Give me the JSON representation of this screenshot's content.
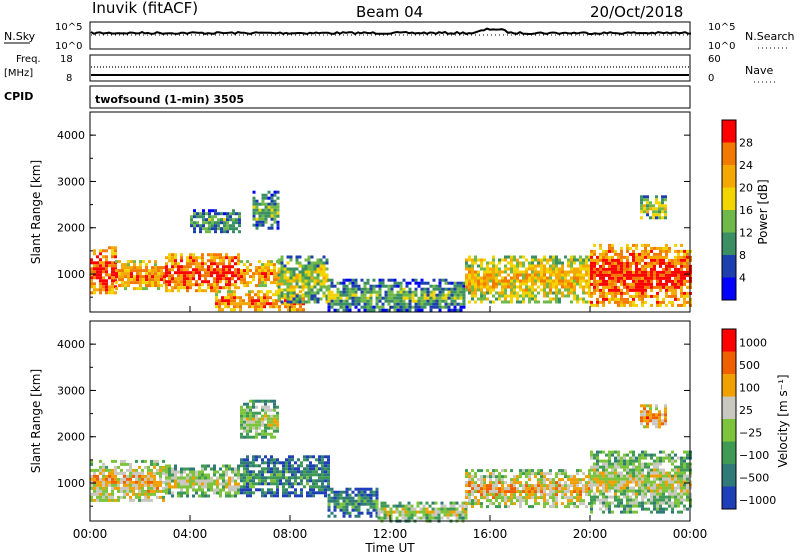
{
  "header": {
    "station": "Inuvik (fitACF)",
    "beam": "Beam 04",
    "date": "20/Oct/2018"
  },
  "strip_labels": {
    "nsky": "N.Sky",
    "freq_1": "Freq.",
    "freq_2": "[MHz]",
    "cpid": "CPID",
    "nsearch": "N.Search",
    "nave": "Nave",
    "nsky_ticks": [
      "10^5",
      "10^0"
    ],
    "freq_ticks": [
      "18",
      "8"
    ],
    "nsearch_ticks": [
      "10^5",
      "10^0"
    ],
    "nave_ticks": [
      "60",
      "0"
    ]
  },
  "program": "twofsound (1-min) 3505",
  "chart_data": [
    {
      "type": "heatmap",
      "panel": "power",
      "ylabel": "Slant Range [km]",
      "colorbar_label": "Power [dB]",
      "colorbar_ticks": [
        "4",
        "8",
        "12",
        "16",
        "20",
        "24",
        "28"
      ],
      "colors": [
        "#0000ff",
        "#1e3fae",
        "#3b8f62",
        "#6fb84a",
        "#f2d400",
        "#f5a800",
        "#f37a00",
        "#ff0000"
      ],
      "yticks": [
        "1000",
        "2000",
        "3000",
        "4000"
      ],
      "xlim_hours": [
        0,
        24
      ],
      "ylim_km": [
        180,
        4500
      ],
      "echo_regions": [
        {
          "t": [
            0,
            1.0
          ],
          "r": [
            600,
            1600
          ],
          "level": 7
        },
        {
          "t": [
            1.0,
            3.0
          ],
          "r": [
            700,
            1300
          ],
          "level": 6
        },
        {
          "t": [
            3.0,
            6.0
          ],
          "r": [
            650,
            1450
          ],
          "level": 7
        },
        {
          "t": [
            6.0,
            7.5
          ],
          "r": [
            750,
            1300
          ],
          "level": 6
        },
        {
          "t": [
            5.0,
            8.5
          ],
          "r": [
            200,
            650
          ],
          "level": 6
        },
        {
          "t": [
            7.5,
            9.5
          ],
          "r": [
            400,
            1400
          ],
          "level": 4
        },
        {
          "t": [
            9.5,
            15.0
          ],
          "r": [
            200,
            900
          ],
          "level": 3
        },
        {
          "t": [
            15.0,
            20.0
          ],
          "r": [
            400,
            1400
          ],
          "level": 5
        },
        {
          "t": [
            20.0,
            24.0
          ],
          "r": [
            350,
            1650
          ],
          "level": 7
        },
        {
          "t": [
            6.5,
            7.5
          ],
          "r": [
            2000,
            2800
          ],
          "level": 3
        },
        {
          "t": [
            4.0,
            6.0
          ],
          "r": [
            1900,
            2400
          ],
          "level": 3
        },
        {
          "t": [
            22.0,
            23.0
          ],
          "r": [
            2200,
            2700
          ],
          "level": 4
        }
      ]
    },
    {
      "type": "heatmap",
      "panel": "velocity",
      "ylabel": "Slant Range [km]",
      "colorbar_label": "Velocity [m s⁻¹]",
      "colorbar_ticks": [
        "1000",
        "500",
        "100",
        "25",
        "−25",
        "−100",
        "−500",
        "−1000"
      ],
      "colors": [
        "#1f3fb8",
        "#2f7a78",
        "#3f9a55",
        "#7cc43c",
        "#c8c8c0",
        "#f0a000",
        "#f06000",
        "#ff0000"
      ],
      "yticks": [
        "1000",
        "2000",
        "3000",
        "4000"
      ],
      "xticks": [
        "00:00",
        "04:00",
        "08:00",
        "12:00",
        "16:00",
        "20:00",
        "00:00"
      ],
      "xlabel": "Time UT",
      "xlim_hours": [
        0,
        24
      ],
      "ylim_km": [
        180,
        4500
      ],
      "echo_regions": [
        {
          "t": [
            0,
            3.0
          ],
          "r": [
            600,
            1500
          ],
          "level": 5
        },
        {
          "t": [
            3.0,
            6.0
          ],
          "r": [
            700,
            1400
          ],
          "level": 4
        },
        {
          "t": [
            6.0,
            9.5
          ],
          "r": [
            700,
            1600
          ],
          "level": 2
        },
        {
          "t": [
            9.5,
            11.5
          ],
          "r": [
            300,
            900
          ],
          "level": 2
        },
        {
          "t": [
            11.5,
            15.0
          ],
          "r": [
            200,
            600
          ],
          "level": 4
        },
        {
          "t": [
            15.0,
            20.0
          ],
          "r": [
            500,
            1300
          ],
          "level": 5
        },
        {
          "t": [
            20.0,
            24.0
          ],
          "r": [
            400,
            1700
          ],
          "level": 4
        },
        {
          "t": [
            6.0,
            7.5
          ],
          "r": [
            2000,
            2800
          ],
          "level": 4
        },
        {
          "t": [
            22.0,
            23.0
          ],
          "r": [
            2200,
            2700
          ],
          "level": 6
        }
      ]
    }
  ]
}
